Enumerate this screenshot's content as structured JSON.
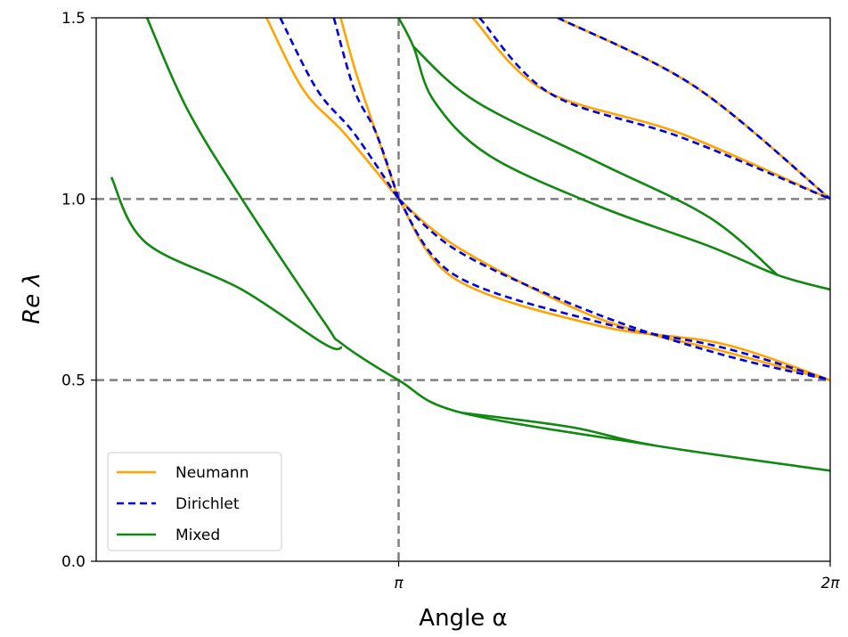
{
  "chart_data": {
    "type": "line",
    "xlabel": "Angle α",
    "ylabel": "Re λ",
    "xlim": [
      0.94,
      6.2832
    ],
    "ylim": [
      0,
      1.5
    ],
    "xticks": [
      {
        "value": 3.1416,
        "label": "π"
      },
      {
        "value": 6.2832,
        "label": "2π"
      }
    ],
    "yticks": [
      {
        "value": 0.0,
        "label": "0.0"
      },
      {
        "value": 0.5,
        "label": "0.5"
      },
      {
        "value": 1.0,
        "label": "1.0"
      },
      {
        "value": 1.5,
        "label": "1.5"
      }
    ],
    "reference_lines": {
      "horizontal": [
        0.5,
        1.0
      ],
      "vertical": [
        3.1416
      ],
      "color": "#808080",
      "style": "dashed"
    },
    "legend": {
      "position": "lower-left",
      "entries": [
        "Neumann",
        "Dirichlet",
        "Mixed"
      ]
    },
    "series": [
      {
        "name": "Neumann",
        "color": "#FFA500",
        "dash": "",
        "curves": [
          [
            [
              2.18,
              1.5
            ],
            [
              2.45,
              1.3
            ],
            [
              2.75,
              1.18
            ],
            [
              3.1416,
              1.0
            ]
          ],
          [
            [
              2.72,
              1.5
            ],
            [
              2.83,
              1.35
            ],
            [
              2.98,
              1.18
            ],
            [
              3.1416,
              1.0
            ]
          ],
          [
            [
              3.1416,
              1.0
            ],
            [
              3.6,
              0.86
            ],
            [
              4.6,
              0.67
            ],
            [
              5.5,
              0.58
            ],
            [
              6.2832,
              0.5
            ]
          ],
          [
            [
              3.1416,
              1.0
            ],
            [
              3.55,
              0.78
            ],
            [
              4.6,
              0.65
            ],
            [
              5.5,
              0.6
            ],
            [
              6.2832,
              0.5
            ]
          ],
          [
            [
              3.68,
              1.5
            ],
            [
              4.2,
              1.3
            ],
            [
              5.2,
              1.18
            ],
            [
              6.2832,
              1.0
            ]
          ],
          [
            [
              4.3,
              1.5
            ],
            [
              5.3,
              1.31
            ],
            [
              6.2832,
              1.0
            ]
          ]
        ]
      },
      {
        "name": "Dirichlet",
        "color": "#0000DD",
        "dash": "8,5",
        "curves": [
          [
            [
              2.28,
              1.5
            ],
            [
              2.55,
              1.3
            ],
            [
              2.82,
              1.18
            ],
            [
              3.1416,
              1.0
            ]
          ],
          [
            [
              2.67,
              1.5
            ],
            [
              2.82,
              1.3
            ],
            [
              2.98,
              1.18
            ],
            [
              3.1416,
              1.0
            ]
          ],
          [
            [
              3.1416,
              1.0
            ],
            [
              3.6,
              0.85
            ],
            [
              4.6,
              0.68
            ],
            [
              5.5,
              0.57
            ],
            [
              6.2832,
              0.5
            ]
          ],
          [
            [
              3.1416,
              1.0
            ],
            [
              3.55,
              0.79
            ],
            [
              4.6,
              0.66
            ],
            [
              5.5,
              0.59
            ],
            [
              6.2832,
              0.5
            ]
          ],
          [
            [
              3.73,
              1.5
            ],
            [
              4.25,
              1.29
            ],
            [
              5.2,
              1.17
            ],
            [
              6.2832,
              1.0
            ]
          ],
          [
            [
              4.3,
              1.5
            ],
            [
              5.3,
              1.31
            ],
            [
              6.2832,
              1.0
            ]
          ]
        ]
      },
      {
        "name": "Mixed",
        "color": "#118811",
        "dash": "",
        "curves": [
          [
            [
              1.31,
              1.5
            ],
            [
              1.6,
              1.25
            ],
            [
              2.0,
              1.0
            ],
            [
              2.6,
              0.66
            ],
            [
              2.73,
              0.6
            ],
            [
              3.1416,
              0.5
            ],
            [
              3.6,
              0.41
            ],
            [
              5.0,
              0.32
            ]
          ],
          [
            [
              1.05,
              1.06
            ],
            [
              1.3,
              0.88
            ],
            [
              2.0,
              0.75
            ],
            [
              2.6,
              0.6
            ],
            [
              2.73,
              0.59
            ]
          ],
          [
            [
              3.6,
              0.41
            ],
            [
              4.4,
              0.37
            ],
            [
              5.0,
              0.32
            ],
            [
              6.2832,
              0.25
            ]
          ],
          [
            [
              3.1416,
              1.5
            ],
            [
              3.25,
              1.42
            ],
            [
              3.4,
              1.27
            ],
            [
              3.8,
              1.12
            ],
            [
              4.6,
              0.98
            ],
            [
              5.4,
              0.87
            ],
            [
              5.9,
              0.79
            ],
            [
              6.2832,
              0.75
            ]
          ],
          [
            [
              3.25,
              1.42
            ],
            [
              3.7,
              1.27
            ],
            [
              4.6,
              1.1
            ],
            [
              5.4,
              0.95
            ],
            [
              5.9,
              0.79
            ]
          ]
        ]
      }
    ]
  }
}
